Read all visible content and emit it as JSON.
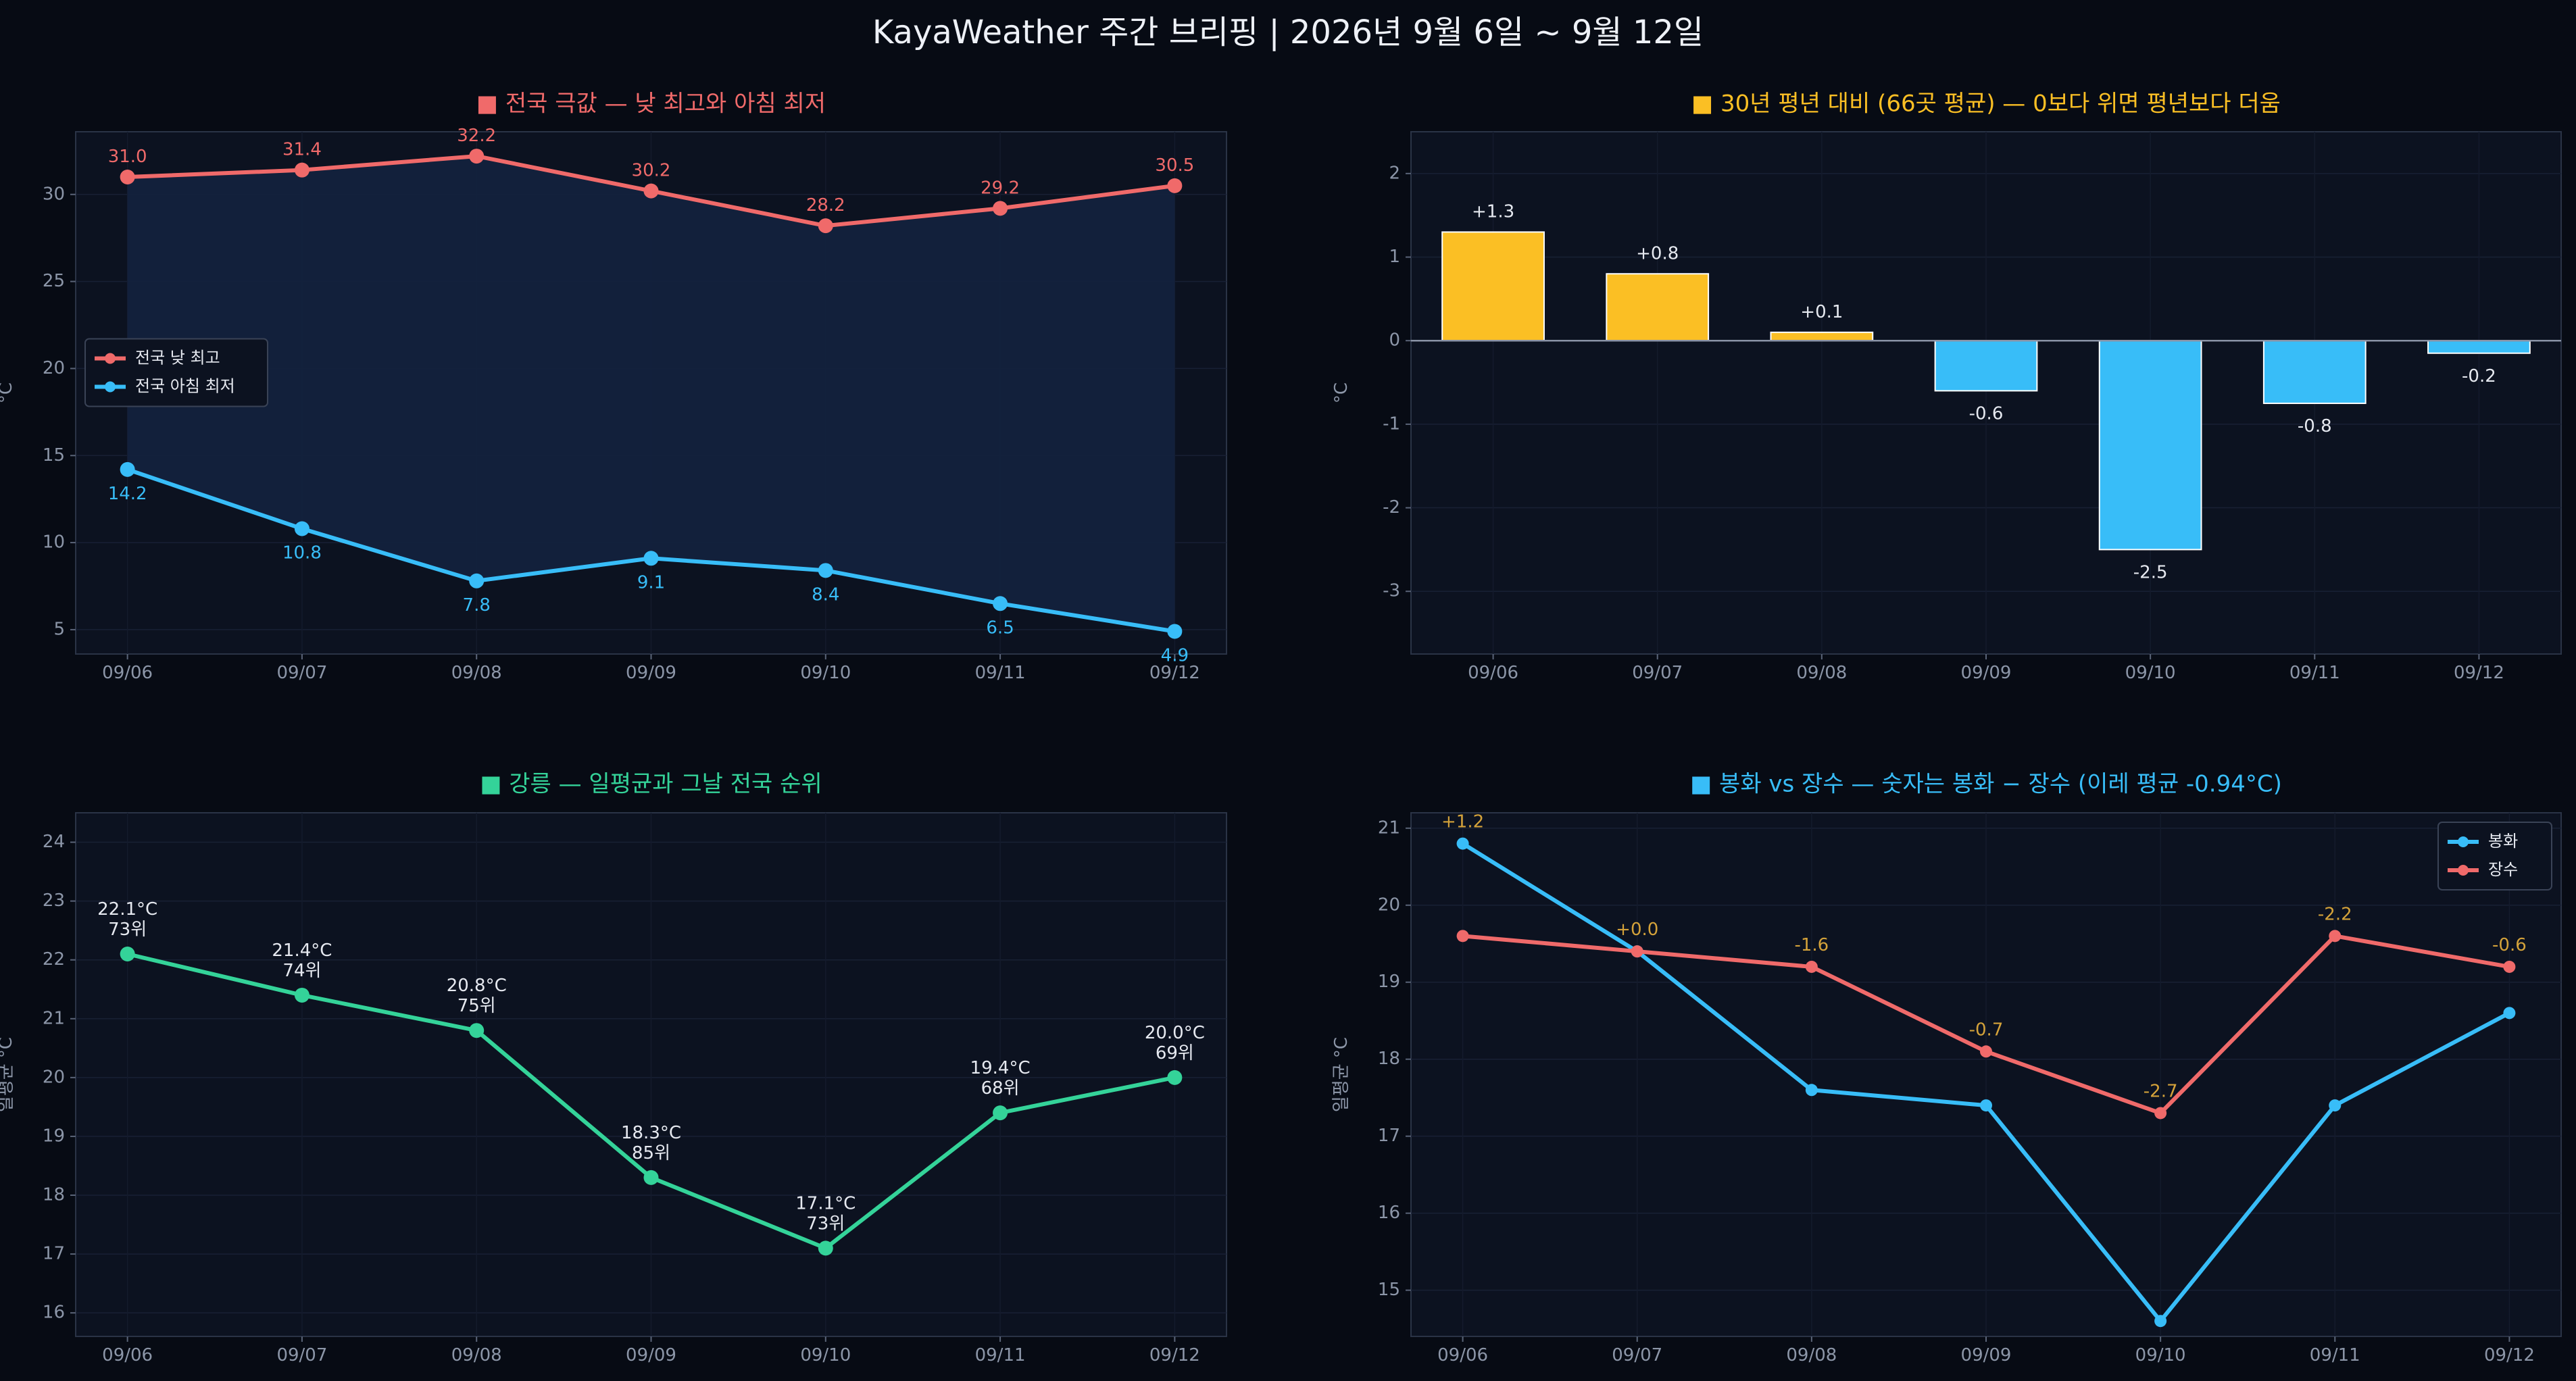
{
  "title": "KayaWeather 주간 브리핑 | 2026년 9월 6일 ~ 9월 12일",
  "colors": {
    "background": "#070b14",
    "panel": "#0c1220",
    "red": "#f06a6a",
    "blue": "#38bdf8",
    "yellow": "#fbbf24",
    "green": "#34d399",
    "fill": "#13223d"
  },
  "chart_data": [
    {
      "id": "extremes",
      "type": "line",
      "title": "■ 전국 극값 — 낮 최고와 아침 최저",
      "title_color": "#f06a6a",
      "ylabel": "°C",
      "categories": [
        "09/06",
        "09/07",
        "09/08",
        "09/09",
        "09/10",
        "09/11",
        "09/12"
      ],
      "ylim": [
        3.6,
        33.6
      ],
      "yticks": [
        5,
        10,
        15,
        20,
        25,
        30
      ],
      "fill_between": true,
      "legend": "center-left",
      "series": [
        {
          "name": "전국 낮 최고",
          "color": "#f06a6a",
          "values": [
            31.0,
            31.4,
            32.2,
            30.2,
            28.2,
            29.2,
            30.5
          ],
          "labels": [
            "31.0",
            "31.4",
            "32.2",
            "30.2",
            "28.2",
            "29.2",
            "30.5"
          ],
          "label_pos": "above"
        },
        {
          "name": "전국 아침 최저",
          "color": "#38bdf8",
          "values": [
            14.2,
            10.8,
            7.8,
            9.1,
            8.4,
            6.5,
            4.9
          ],
          "labels": [
            "14.2",
            "10.8",
            "7.8",
            "9.1",
            "8.4",
            "6.5",
            "4.9"
          ],
          "label_pos": "below"
        }
      ]
    },
    {
      "id": "anomaly",
      "type": "bar",
      "title": "■ 30년 평년 대비 (66곳 평균) — 0보다 위면 평년보다 더움",
      "title_color": "#fbbf24",
      "ylabel": "°C",
      "categories": [
        "09/06",
        "09/07",
        "09/08",
        "09/09",
        "09/10",
        "09/11",
        "09/12"
      ],
      "values": [
        1.3,
        0.8,
        0.1,
        -0.6,
        -2.5,
        -0.75,
        -0.15
      ],
      "labels": [
        "+1.3",
        "+0.8",
        "+0.1",
        "-0.6",
        "-2.5",
        "-0.8",
        "-0.2"
      ],
      "positive_color": "#fbbf24",
      "negative_color": "#38bdf8",
      "ylim": [
        -3.75,
        2.5
      ],
      "yticks": [
        -3,
        -2,
        -1,
        0,
        1,
        2
      ],
      "ytick_labels": [
        "-3",
        "-2",
        "-1",
        "0",
        "1",
        "2"
      ]
    },
    {
      "id": "gangneung",
      "type": "line",
      "title": "■ 강릉 — 일평균과 그날 전국 순위",
      "title_color": "#34d399",
      "ylabel": "일평균 °C",
      "categories": [
        "09/06",
        "09/07",
        "09/08",
        "09/09",
        "09/10",
        "09/11",
        "09/12"
      ],
      "ylim": [
        15.6,
        24.5
      ],
      "yticks": [
        16,
        17,
        18,
        19,
        20,
        21,
        22,
        23,
        24
      ],
      "series": [
        {
          "name": "",
          "color": "#34d399",
          "values": [
            22.1,
            21.4,
            20.8,
            18.3,
            17.1,
            19.4,
            20.0
          ],
          "labels": [
            "22.1°C",
            "21.4°C",
            "20.8°C",
            "18.3°C",
            "17.1°C",
            "19.4°C",
            "20.0°C"
          ],
          "ranks": [
            "73위",
            "74위",
            "75위",
            "85위",
            "73위",
            "68위",
            "69위"
          ]
        }
      ]
    },
    {
      "id": "bonghwa-jangsu",
      "type": "line",
      "title": "■ 봉화 vs 장수 — 숫자는 봉화 − 장수 (이레 평균 -0.94°C)",
      "title_color": "#38bdf8",
      "ylabel": "일평균 °C",
      "categories": [
        "09/06",
        "09/07",
        "09/08",
        "09/09",
        "09/10",
        "09/11",
        "09/12"
      ],
      "ylim": [
        14.4,
        21.2
      ],
      "yticks": [
        15,
        16,
        17,
        18,
        19,
        20,
        21
      ],
      "legend": "top-right",
      "diff_color": "#d4a23a",
      "diff_labels": [
        "+1.2",
        "+0.0",
        "-1.6",
        "-0.7",
        "-2.7",
        "-2.2",
        "-0.6"
      ],
      "series": [
        {
          "name": "봉화",
          "color": "#38bdf8",
          "values": [
            20.8,
            19.4,
            17.6,
            17.4,
            14.6,
            17.4,
            18.6
          ]
        },
        {
          "name": "장수",
          "color": "#f06a6a",
          "values": [
            19.6,
            19.4,
            19.2,
            18.1,
            17.3,
            19.6,
            19.2
          ]
        }
      ]
    }
  ]
}
